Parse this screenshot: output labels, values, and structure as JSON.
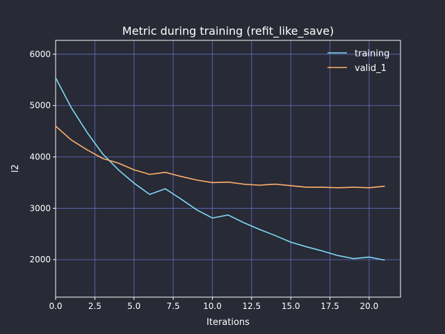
{
  "chart_data": {
    "type": "line",
    "title": "Metric during training (refit_like_save)",
    "xlabel": "Iterations",
    "ylabel": "l2",
    "xlim": [
      0,
      22
    ],
    "ylim": [
      1270,
      6270
    ],
    "xticks": [
      0.0,
      2.5,
      5.0,
      7.5,
      10.0,
      12.5,
      15.0,
      17.5,
      20.0
    ],
    "xtick_labels": [
      "0.0",
      "2.5",
      "5.0",
      "7.5",
      "10.0",
      "12.5",
      "15.0",
      "17.5",
      "20.0"
    ],
    "yticks": [
      2000,
      3000,
      4000,
      5000,
      6000
    ],
    "ytick_labels": [
      "2000",
      "3000",
      "4000",
      "5000",
      "6000"
    ],
    "grid": true,
    "legend_position": "top-right",
    "x": [
      0,
      1,
      2,
      3,
      4,
      5,
      6,
      7,
      8,
      9,
      10,
      11,
      12,
      13,
      14,
      15,
      16,
      17,
      18,
      19,
      20,
      21
    ],
    "series": [
      {
        "name": "training",
        "color": "#7fdbf5",
        "values": [
          5540,
          4960,
          4480,
          4060,
          3750,
          3490,
          3270,
          3380,
          3180,
          2970,
          2810,
          2870,
          2720,
          2590,
          2470,
          2340,
          2250,
          2170,
          2080,
          2020,
          2050,
          1990
        ]
      },
      {
        "name": "valid_1",
        "color": "#ffb26b",
        "values": [
          4600,
          4330,
          4140,
          3970,
          3880,
          3750,
          3660,
          3700,
          3620,
          3550,
          3500,
          3510,
          3470,
          3450,
          3470,
          3440,
          3410,
          3410,
          3400,
          3410,
          3400,
          3430
        ]
      }
    ],
    "colors": {
      "background": "#282a36",
      "grid": "#6272c4",
      "text": "#ffffff"
    }
  }
}
